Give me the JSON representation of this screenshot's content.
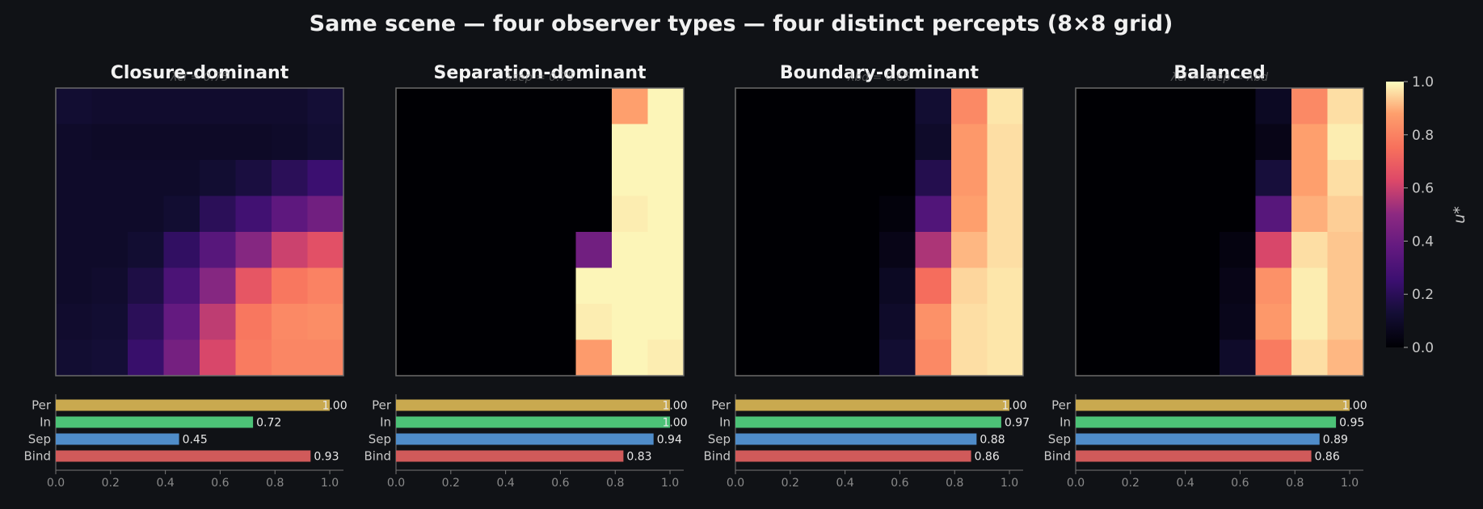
{
  "figure": {
    "title": "Same scene — four observer types — four distinct percepts   (8×8 grid)",
    "colorbar": {
      "label": "u*",
      "ticks": [
        0.0,
        0.2,
        0.4,
        0.6,
        0.8,
        1.0
      ],
      "tick_labels": [
        "0.0",
        "0.2",
        "0.4",
        "0.6",
        "0.8",
        "1.0"
      ],
      "colormap": "magma",
      "range": [
        0,
        1
      ]
    }
  },
  "chart_data": [
    {
      "type": "heatmap",
      "title": "Closure-dominant",
      "subtitle": "λcl = 0.75",
      "vmin": 0,
      "vmax": 1,
      "grid": [
        [
          0.12,
          0.11,
          0.11,
          0.11,
          0.11,
          0.11,
          0.11,
          0.13
        ],
        [
          0.1,
          0.09,
          0.09,
          0.09,
          0.09,
          0.09,
          0.1,
          0.12
        ],
        [
          0.1,
          0.1,
          0.1,
          0.1,
          0.12,
          0.15,
          0.2,
          0.25
        ],
        [
          0.1,
          0.1,
          0.1,
          0.12,
          0.2,
          0.27,
          0.36,
          0.42
        ],
        [
          0.1,
          0.1,
          0.12,
          0.22,
          0.34,
          0.48,
          0.6,
          0.65
        ],
        [
          0.1,
          0.11,
          0.16,
          0.3,
          0.48,
          0.67,
          0.77,
          0.8
        ],
        [
          0.11,
          0.12,
          0.2,
          0.38,
          0.58,
          0.77,
          0.82,
          0.83
        ],
        [
          0.12,
          0.13,
          0.24,
          0.43,
          0.62,
          0.78,
          0.81,
          0.81
        ]
      ],
      "bars": {
        "categories": [
          "Per",
          "In",
          "Sep",
          "Bind"
        ],
        "values": [
          1.0,
          0.72,
          0.45,
          0.93
        ],
        "value_labels": [
          "1.00",
          "0.72",
          "0.45",
          "0.93"
        ],
        "xlim": [
          0,
          1.05
        ],
        "xticks": [
          "0.0",
          "0.2",
          "0.4",
          "0.6",
          "0.8",
          "1.0"
        ]
      }
    },
    {
      "type": "heatmap",
      "title": "Separation-dominant",
      "subtitle": "λsep = 0.75",
      "vmin": 0,
      "vmax": 1,
      "grid": [
        [
          0,
          0,
          0,
          0,
          0,
          0,
          0.88,
          0.99
        ],
        [
          0,
          0,
          0,
          0,
          0,
          0,
          0.99,
          0.99
        ],
        [
          0,
          0,
          0,
          0,
          0,
          0,
          0.99,
          0.99
        ],
        [
          0,
          0,
          0,
          0,
          0,
          0,
          0.98,
          0.99
        ],
        [
          0,
          0,
          0,
          0,
          0,
          0.42,
          0.99,
          0.99
        ],
        [
          0,
          0,
          0,
          0,
          0,
          0.99,
          0.99,
          0.99
        ],
        [
          0,
          0,
          0,
          0,
          0,
          0.98,
          0.99,
          0.99
        ],
        [
          0,
          0,
          0,
          0,
          0,
          0.87,
          0.99,
          0.98
        ]
      ],
      "bars": {
        "categories": [
          "Per",
          "In",
          "Sep",
          "Bind"
        ],
        "values": [
          1.0,
          1.0,
          0.94,
          0.83
        ],
        "value_labels": [
          "1.00",
          "1.00",
          "0.94",
          "0.83"
        ],
        "xlim": [
          0,
          1.05
        ],
        "xticks": [
          "0.0",
          "0.2",
          "0.4",
          "0.6",
          "0.8",
          "1.0"
        ]
      }
    },
    {
      "type": "heatmap",
      "title": "Boundary-dominant",
      "subtitle": "λbd = 0.65",
      "vmin": 0,
      "vmax": 1,
      "grid": [
        [
          0,
          0,
          0,
          0,
          0,
          0.12,
          0.82,
          0.97
        ],
        [
          0,
          0,
          0,
          0,
          0,
          0.1,
          0.86,
          0.96
        ],
        [
          0,
          0,
          0,
          0,
          0,
          0.18,
          0.86,
          0.96
        ],
        [
          0,
          0,
          0,
          0,
          0.02,
          0.32,
          0.88,
          0.96
        ],
        [
          0,
          0,
          0,
          0,
          0.05,
          0.55,
          0.91,
          0.96
        ],
        [
          0,
          0,
          0,
          0,
          0.08,
          0.74,
          0.95,
          0.97
        ],
        [
          0,
          0,
          0,
          0,
          0.1,
          0.84,
          0.96,
          0.97
        ],
        [
          0,
          0,
          0,
          0,
          0.12,
          0.82,
          0.96,
          0.97
        ]
      ],
      "bars": {
        "categories": [
          "Per",
          "In",
          "Sep",
          "Bind"
        ],
        "values": [
          1.0,
          0.97,
          0.88,
          0.86
        ],
        "value_labels": [
          "1.00",
          "0.97",
          "0.88",
          "0.86"
        ],
        "xlim": [
          0,
          1.05
        ],
        "xticks": [
          "0.0",
          "0.2",
          "0.4",
          "0.6",
          "0.8",
          "1.0"
        ]
      }
    },
    {
      "type": "heatmap",
      "title": "Balanced",
      "subtitle": "λcl = λsep = λbd",
      "vmin": 0,
      "vmax": 1,
      "grid": [
        [
          0,
          0,
          0,
          0,
          0,
          0.08,
          0.82,
          0.96
        ],
        [
          0,
          0,
          0,
          0,
          0,
          0.05,
          0.88,
          0.98
        ],
        [
          0,
          0,
          0,
          0,
          0,
          0.14,
          0.88,
          0.96
        ],
        [
          0,
          0,
          0,
          0,
          0,
          0.34,
          0.9,
          0.94
        ],
        [
          0,
          0,
          0,
          0,
          0.03,
          0.62,
          0.96,
          0.93
        ],
        [
          0,
          0,
          0,
          0,
          0.05,
          0.84,
          0.98,
          0.93
        ],
        [
          0,
          0,
          0,
          0,
          0.06,
          0.86,
          0.98,
          0.93
        ],
        [
          0,
          0,
          0,
          0,
          0.1,
          0.78,
          0.96,
          0.91
        ]
      ],
      "bars": {
        "categories": [
          "Per",
          "In",
          "Sep",
          "Bind"
        ],
        "values": [
          1.0,
          0.95,
          0.89,
          0.86
        ],
        "value_labels": [
          "1.00",
          "0.95",
          "0.89",
          "0.86"
        ],
        "xlim": [
          0,
          1.05
        ],
        "xticks": [
          "0.0",
          "0.2",
          "0.4",
          "0.6",
          "0.8",
          "1.0"
        ]
      }
    }
  ],
  "bar_colors": {
    "Per": "#c9a94f",
    "In": "#4cc277",
    "Sep": "#4f8cc9",
    "Bind": "#d05a5a"
  }
}
